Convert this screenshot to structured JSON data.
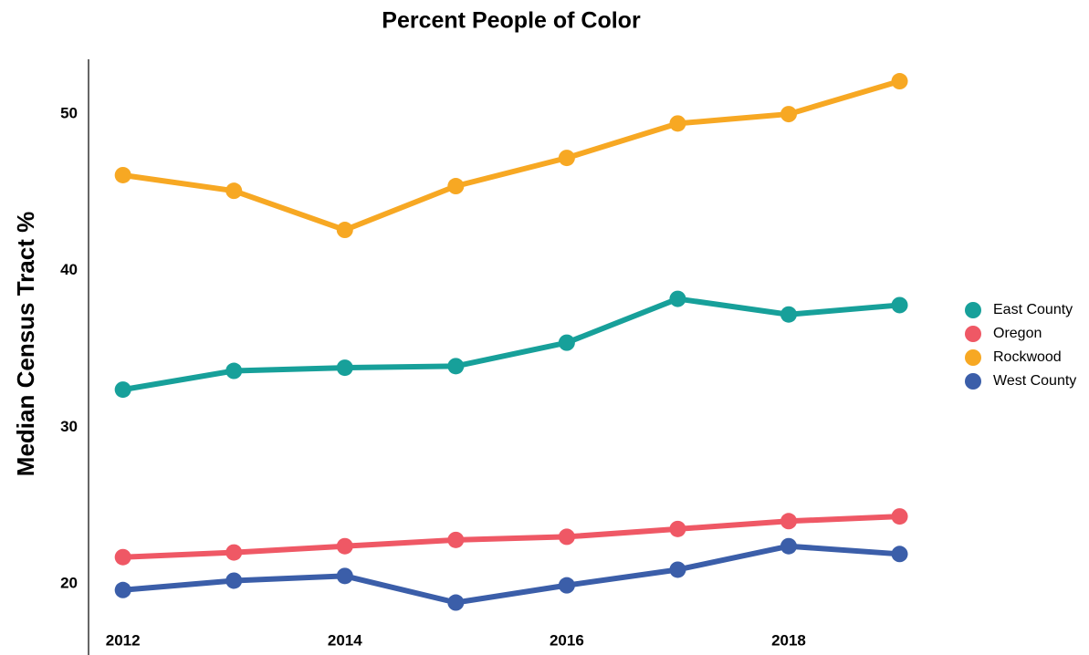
{
  "chart_data": {
    "type": "line",
    "title": "Percent People of Color",
    "y_label": "Median Census Tract  %",
    "x": [
      2012,
      2013,
      2014,
      2015,
      2016,
      2017,
      2018,
      2019
    ],
    "xlim": [
      2011.69,
      2019.3
    ],
    "xticks": [
      2012,
      2014,
      2016,
      2018
    ],
    "ylim": [
      15.45,
      53.5
    ],
    "yticks": [
      20,
      30,
      40,
      50
    ],
    "legend": "right",
    "series": [
      {
        "name": "East County",
        "color": "#17a09a",
        "values": [
          32.4,
          33.6,
          33.8,
          33.9,
          35.4,
          38.2,
          37.2,
          37.8
        ]
      },
      {
        "name": "Oregon",
        "color": "#ef5865",
        "values": [
          21.7,
          22.0,
          22.4,
          22.8,
          23.0,
          23.5,
          24.0,
          24.3
        ]
      },
      {
        "name": "Rockwood",
        "color": "#f7a823",
        "values": [
          46.1,
          45.1,
          42.6,
          45.4,
          47.2,
          49.4,
          50.0,
          52.1
        ]
      },
      {
        "name": "West County",
        "color": "#3b5ea9",
        "values": [
          19.6,
          20.2,
          20.5,
          18.8,
          19.9,
          20.9,
          22.4,
          21.9
        ]
      }
    ]
  }
}
